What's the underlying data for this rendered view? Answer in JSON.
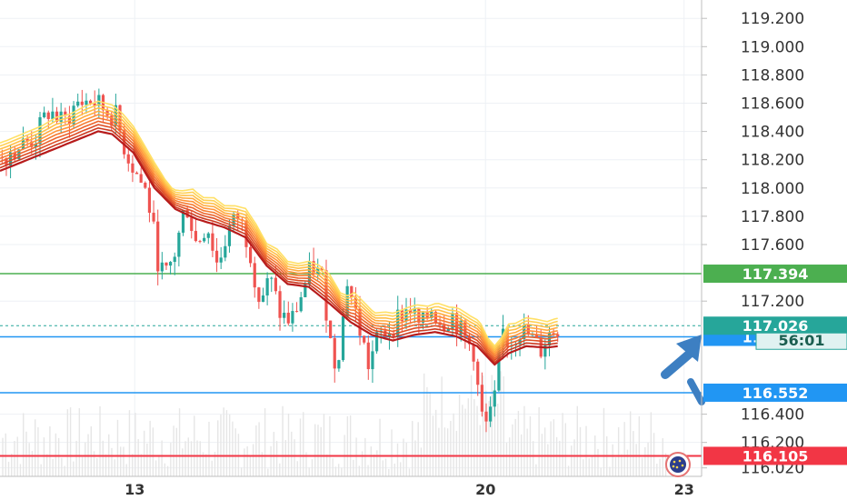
{
  "chart_data": {
    "type": "candlestick",
    "y_axis": {
      "ticks": [
        "119.200",
        "119.000",
        "118.800",
        "118.600",
        "118.400",
        "118.200",
        "118.000",
        "117.800",
        "117.600",
        "117.200",
        "116.400",
        "116.200",
        "116.020"
      ],
      "range": [
        115.96,
        119.33
      ]
    },
    "x_axis": {
      "ticks": [
        "13",
        "20",
        "23"
      ],
      "range": [
        0,
        100
      ]
    },
    "levels": [
      {
        "label": "117.394",
        "value": 117.394,
        "color": "#4caf50"
      },
      {
        "label": "116.947",
        "value": 116.947,
        "color": "#2196f3"
      },
      {
        "label": "116.552",
        "value": 116.552,
        "color": "#2196f3"
      },
      {
        "label": "116.105",
        "value": 116.105,
        "color": "#f23645"
      }
    ],
    "current_price": {
      "label": "117.026",
      "countdown": "56:01",
      "value": 117.026,
      "color": "#26a69a"
    },
    "colors": {
      "up": "#26a69a",
      "down": "#ef5350",
      "ribbon_fast": "#ffe066",
      "ribbon_slow": "#b71c1c",
      "arrow": "#3d7fc2"
    },
    "price_path": [
      {
        "t": 0,
        "p": 118.22
      },
      {
        "t": 3,
        "p": 118.3
      },
      {
        "t": 5,
        "p": 118.35
      },
      {
        "t": 7,
        "p": 118.55
      },
      {
        "t": 9,
        "p": 118.45
      },
      {
        "t": 11,
        "p": 118.6
      },
      {
        "t": 13,
        "p": 118.62
      },
      {
        "t": 15,
        "p": 118.55
      },
      {
        "t": 16.5,
        "p": 118.5
      },
      {
        "t": 18,
        "p": 118.25
      },
      {
        "t": 19.5,
        "p": 118.1
      },
      {
        "t": 21,
        "p": 117.95
      },
      {
        "t": 22.5,
        "p": 117.5
      },
      {
        "t": 23.5,
        "p": 117.35
      },
      {
        "t": 25,
        "p": 117.55
      },
      {
        "t": 26.5,
        "p": 117.9
      },
      {
        "t": 28,
        "p": 117.6
      },
      {
        "t": 29.5,
        "p": 117.75
      },
      {
        "t": 31,
        "p": 117.45
      },
      {
        "t": 32.5,
        "p": 117.7
      },
      {
        "t": 34,
        "p": 117.8
      },
      {
        "t": 35.5,
        "p": 117.6
      },
      {
        "t": 37,
        "p": 117.2
      },
      {
        "t": 38.5,
        "p": 117.35
      },
      {
        "t": 40,
        "p": 117.1
      },
      {
        "t": 41.5,
        "p": 117.05
      },
      {
        "t": 43,
        "p": 117.25
      },
      {
        "t": 44.5,
        "p": 117.45
      },
      {
        "t": 46,
        "p": 117.35
      },
      {
        "t": 47.5,
        "p": 116.75
      },
      {
        "t": 48.5,
        "p": 116.9
      },
      {
        "t": 49.5,
        "p": 117.35
      },
      {
        "t": 51,
        "p": 117.05
      },
      {
        "t": 52.5,
        "p": 116.75
      },
      {
        "t": 54,
        "p": 116.95
      },
      {
        "t": 55.5,
        "p": 117.0
      },
      {
        "t": 57,
        "p": 117.1
      },
      {
        "t": 58.5,
        "p": 117.15
      },
      {
        "t": 60,
        "p": 117.0
      },
      {
        "t": 61.5,
        "p": 117.15
      },
      {
        "t": 63,
        "p": 117.05
      },
      {
        "t": 64.5,
        "p": 117.1
      },
      {
        "t": 66,
        "p": 116.95
      },
      {
        "t": 67.5,
        "p": 116.85
      },
      {
        "t": 68.5,
        "p": 116.4
      },
      {
        "t": 69.5,
        "p": 116.3
      },
      {
        "t": 70.5,
        "p": 116.5
      },
      {
        "t": 71.5,
        "p": 117.0
      },
      {
        "t": 72.5,
        "p": 116.9
      },
      {
        "t": 74,
        "p": 117.0
      },
      {
        "t": 75.5,
        "p": 116.95
      },
      {
        "t": 77,
        "p": 116.85
      },
      {
        "t": 78,
        "p": 116.95
      },
      {
        "t": 79.5,
        "p": 117.02
      }
    ],
    "ribbon_path": [
      {
        "t": 0,
        "p": 118.22
      },
      {
        "t": 5,
        "p": 118.32
      },
      {
        "t": 10,
        "p": 118.42
      },
      {
        "t": 14,
        "p": 118.5
      },
      {
        "t": 16,
        "p": 118.48
      },
      {
        "t": 19,
        "p": 118.35
      },
      {
        "t": 22,
        "p": 118.1
      },
      {
        "t": 25,
        "p": 117.95
      },
      {
        "t": 28,
        "p": 117.88
      },
      {
        "t": 32,
        "p": 117.82
      },
      {
        "t": 35,
        "p": 117.75
      },
      {
        "t": 38,
        "p": 117.55
      },
      {
        "t": 41,
        "p": 117.42
      },
      {
        "t": 44,
        "p": 117.4
      },
      {
        "t": 47,
        "p": 117.28
      },
      {
        "t": 50,
        "p": 117.15
      },
      {
        "t": 53,
        "p": 117.06
      },
      {
        "t": 56,
        "p": 117.02
      },
      {
        "t": 59,
        "p": 117.06
      },
      {
        "t": 62,
        "p": 117.08
      },
      {
        "t": 65,
        "p": 117.05
      },
      {
        "t": 68,
        "p": 116.98
      },
      {
        "t": 70.5,
        "p": 116.85
      },
      {
        "t": 72.5,
        "p": 116.93
      },
      {
        "t": 75,
        "p": 116.98
      },
      {
        "t": 78,
        "p": 116.97
      },
      {
        "t": 79.5,
        "p": 116.98
      }
    ]
  }
}
